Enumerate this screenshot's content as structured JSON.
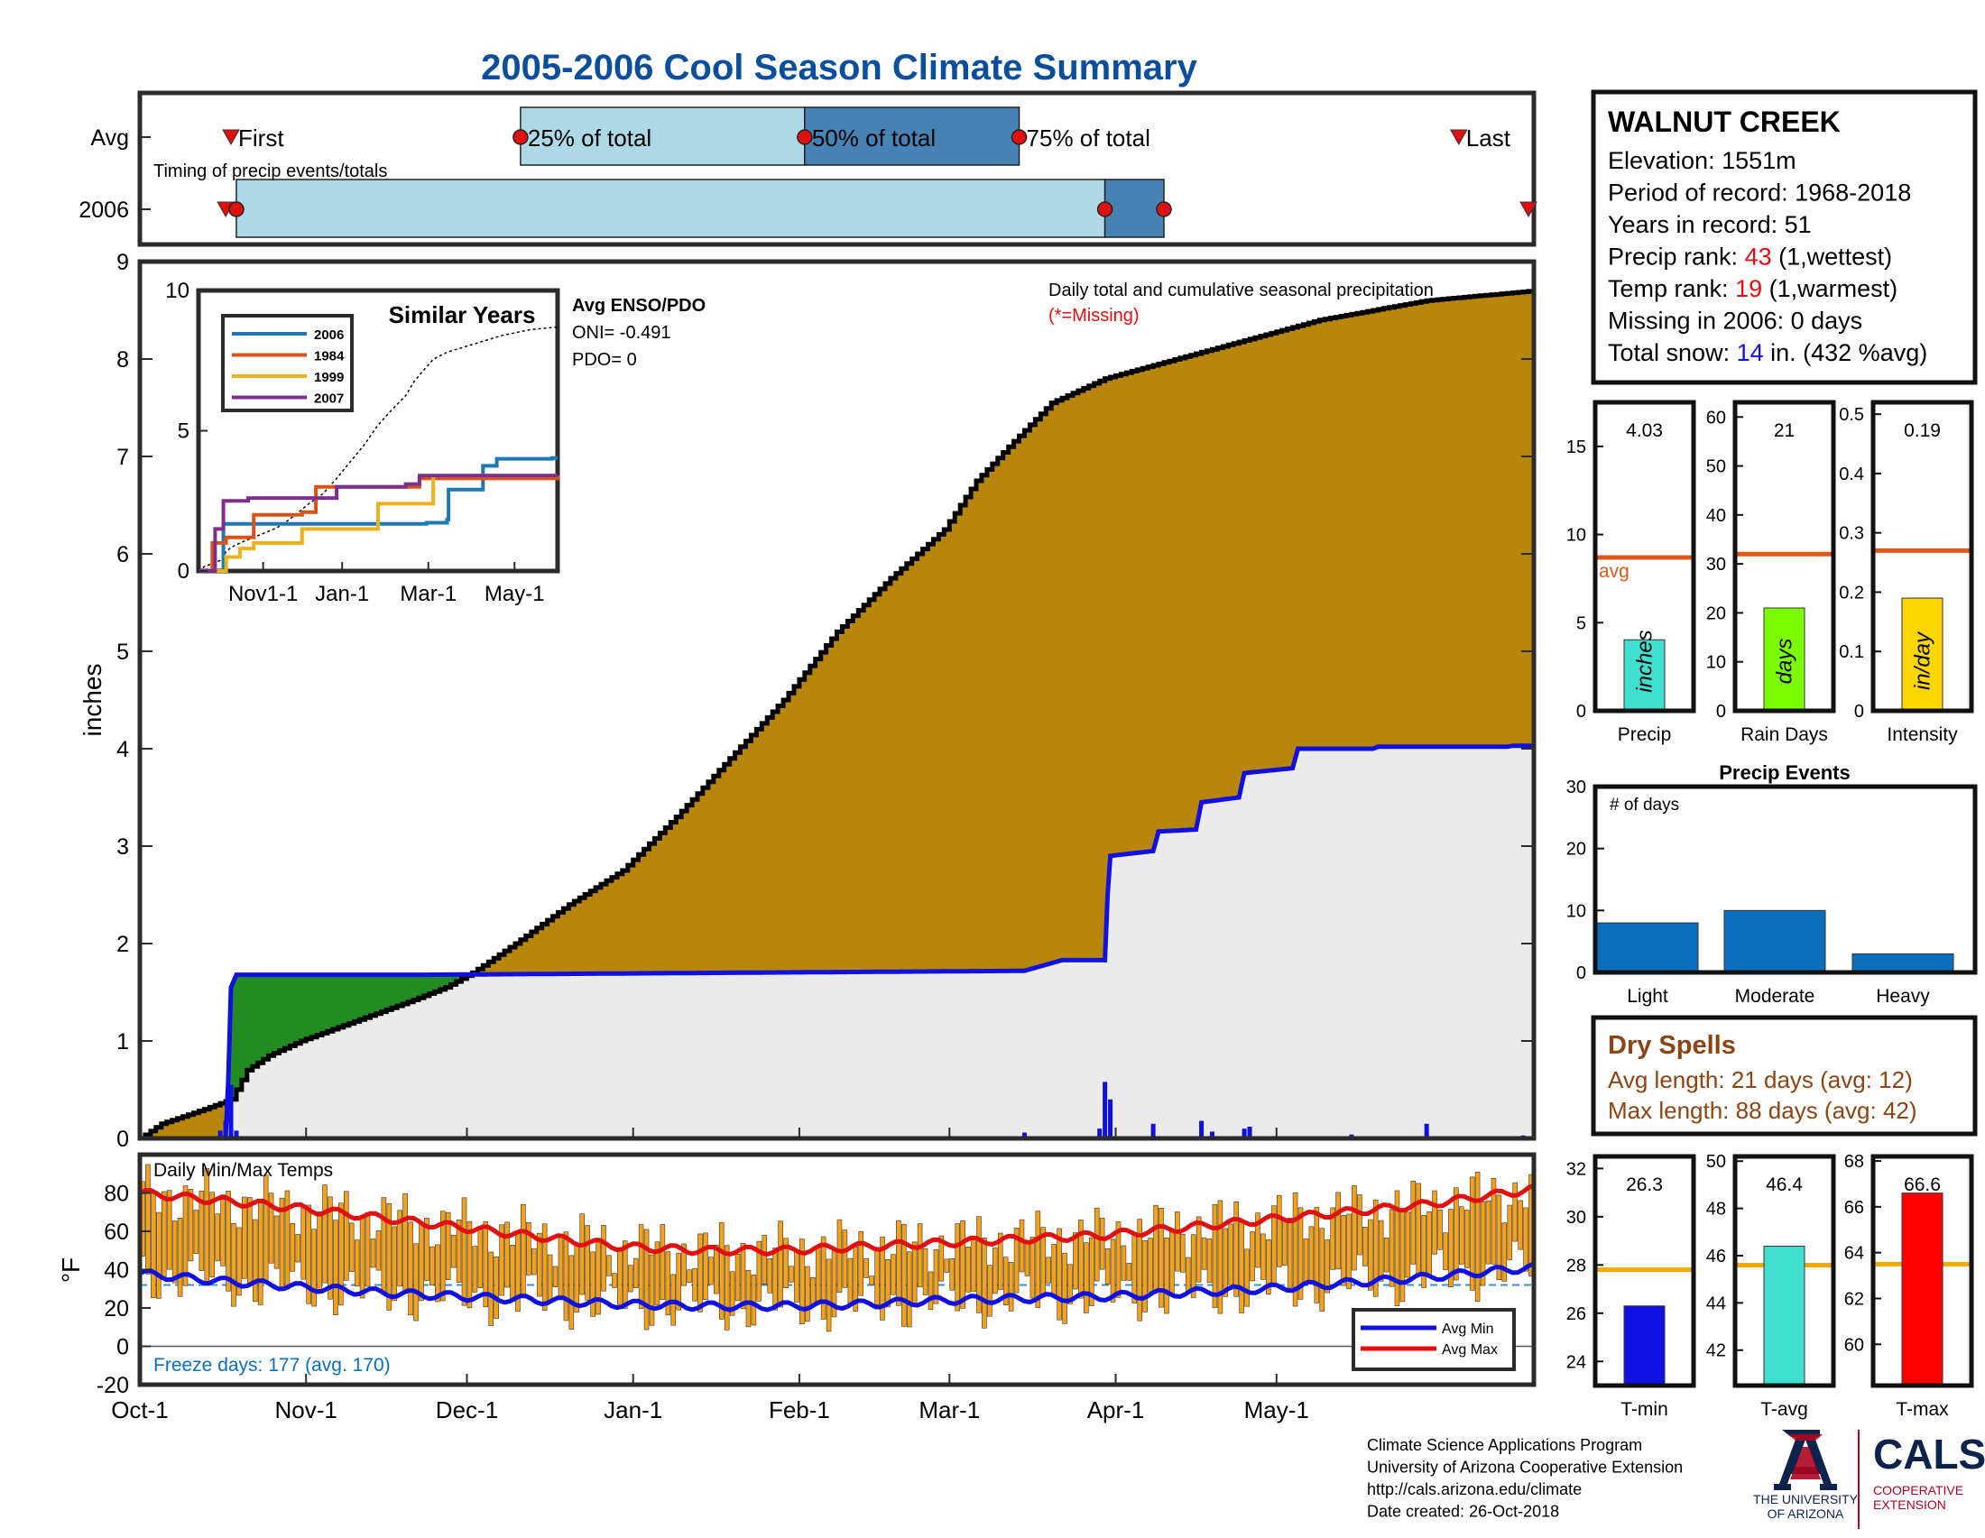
{
  "title": "2005-2006 Cool Season Climate Summary",
  "colors": {
    "title": "#0b4f9c",
    "frame": "#2b2b2b",
    "cum_fill": "#b8860b",
    "surplus_fill": "#228b22",
    "current_line": "#1010e0",
    "below_fill": "#ebebeb",
    "red": "#e01010",
    "orange_avg": "#e0571c",
    "bar_light": "#add8e6",
    "bar_dark": "#4682b4",
    "event_bar": "#0a6ebd",
    "temp_bar": "#f5a21a",
    "dry_spell": "#8b4513",
    "snow_blue": "#1010e0"
  },
  "timing": {
    "row_labels": [
      "Avg",
      "2006"
    ],
    "caption": "Timing of precip events/totals",
    "avg_labels": [
      "First",
      "25% of total",
      "50% of total",
      "75% of total",
      "Last"
    ],
    "avg_days": {
      "first": 17,
      "p25": 71,
      "p50": 124,
      "p75": 164,
      "last": 246
    },
    "y2006_days": {
      "first": 16,
      "first_marker": 18,
      "p50": 180,
      "p75": 191,
      "last": 260
    }
  },
  "station": {
    "name": "WALNUT CREEK",
    "lines": [
      {
        "prefix": "Elevation: 1551m",
        "value": "",
        "suffix": ""
      },
      {
        "prefix": "Period of record: 1968-2018",
        "value": "",
        "suffix": ""
      },
      {
        "prefix": "Years in record: 51",
        "value": "",
        "suffix": ""
      },
      {
        "prefix": "Precip rank: ",
        "value": "43",
        "suffix": " (1,wettest)",
        "color": "#e01010"
      },
      {
        "prefix": "Temp rank: ",
        "value": "19",
        "suffix": " (1,warmest)",
        "color": "#e01010"
      },
      {
        "prefix": "Missing in 2006: 0 days",
        "value": "",
        "suffix": ""
      },
      {
        "prefix": "Total snow: ",
        "value": "14",
        "suffix": " in. (432 %avg)",
        "color": "#1010e0"
      }
    ]
  },
  "main_panel": {
    "ylabel": "inches",
    "annotation": "Daily total and cumulative seasonal precipitation",
    "missing_note": "(*=Missing)",
    "yticks": [
      0,
      1,
      2,
      3,
      4,
      5,
      6,
      7,
      8,
      9
    ]
  },
  "inset": {
    "title": "Similar Years",
    "yticks": [
      0,
      5,
      10
    ],
    "xticks": [
      "Nov1-1",
      "Jan-1",
      "Mar-1",
      "May-1"
    ],
    "legend": [
      {
        "name": "2006",
        "color": "#1f77b4"
      },
      {
        "name": "1984",
        "color": "#d95319"
      },
      {
        "name": "1999",
        "color": "#edb120"
      },
      {
        "name": "2007",
        "color": "#7e2f8e"
      }
    ]
  },
  "enso": {
    "title": "Avg ENSO/PDO",
    "oni": "ONI= -0.491",
    "pdo": "PDO= 0"
  },
  "temp_panel": {
    "title": "Daily Min/Max Temps",
    "ylabel": "°F",
    "yticks": [
      -20,
      0,
      20,
      40,
      60,
      80
    ],
    "freeze_note": "Freeze days: 177 (avg. 170)",
    "legend": [
      {
        "name": "Avg Min",
        "color": "#1010e0"
      },
      {
        "name": "Avg Max",
        "color": "#e01010"
      }
    ]
  },
  "x_axis_labels": [
    "Oct-1",
    "Nov-1",
    "Dec-1",
    "Jan-1",
    "Feb-1",
    "Mar-1",
    "Apr-1",
    "May-1"
  ],
  "stats_top": [
    {
      "label": "Precip",
      "value_text": "4.03",
      "value": 4.03,
      "avg": 8.7,
      "ymax": 17.5,
      "yticks": [
        0,
        5,
        10,
        15
      ],
      "unit": "inches",
      "color": "#40e0d0",
      "avg_label": "avg"
    },
    {
      "label": "Rain Days",
      "value_text": "21",
      "value": 21,
      "avg": 32,
      "ymax": 63,
      "yticks": [
        0,
        10,
        20,
        30,
        40,
        50,
        60
      ],
      "unit": "days",
      "color": "#7cfc00",
      "avg_label": ""
    },
    {
      "label": "Intensity",
      "value_text": "0.19",
      "value": 0.19,
      "avg": 0.27,
      "ymax": 0.52,
      "yticks": [
        0,
        0.1,
        0.2,
        0.3,
        0.4,
        0.5
      ],
      "unit": "in/day",
      "color": "#ffd700",
      "avg_label": ""
    }
  ],
  "precip_events": {
    "title": "Precip Events",
    "subtitle": "# of days",
    "categories": [
      "Light",
      "Moderate",
      "Heavy"
    ],
    "values": [
      8,
      10,
      3
    ],
    "yticks": [
      0,
      10,
      20,
      30
    ]
  },
  "dry_spells": {
    "title": "Dry Spells",
    "avg_length": "Avg length: 21 days (avg: 12)",
    "max_length": "Max length: 88 days (avg: 42)"
  },
  "stats_temp": [
    {
      "label": "T-min",
      "value_text": "26.3",
      "value": 26.3,
      "avg": 27.8,
      "ymin": 23,
      "ymax": 32.5,
      "yticks": [
        24,
        26,
        28,
        30,
        32
      ],
      "color": "#1010e0"
    },
    {
      "label": "T-avg",
      "value_text": "46.4",
      "value": 46.4,
      "avg": 45.6,
      "ymin": 40.5,
      "ymax": 50.2,
      "yticks": [
        42,
        44,
        46,
        48,
        50
      ],
      "color": "#40e0d0"
    },
    {
      "label": "T-max",
      "value_text": "66.6",
      "value": 66.6,
      "avg": 63.5,
      "ymin": 58.2,
      "ymax": 68.2,
      "yticks": [
        60,
        62,
        64,
        66,
        68
      ],
      "color": "#ff0000"
    }
  ],
  "footer": {
    "lines": [
      "Climate Science Applications Program",
      "University of Arizona Cooperative Extension",
      "http://cals.arizona.edu/climate",
      " Date created: 26-Oct-2018"
    ],
    "ua_name": [
      "THE UNIVERSITY",
      "OF ARIZONA"
    ],
    "cals": "CALS",
    "cals_sub": [
      "COOPERATIVE",
      "EXTENSION"
    ]
  },
  "chart_data": {
    "type": "area",
    "title": "2005-2006 Cool Season Climate Summary",
    "ylabel": "inches",
    "ylim": [
      0,
      9
    ],
    "x_start": "Oct-1",
    "x_ticks": [
      "Oct-1",
      "Nov-1",
      "Dec-1",
      "Jan-1",
      "Feb-1",
      "Mar-1",
      "Apr-1",
      "May-1"
    ],
    "series": [
      {
        "name": "Average cumulative precipitation",
        "x_day": [
          0,
          4,
          12,
          17,
          20,
          24,
          30,
          40,
          50,
          57,
          62,
          70,
          80,
          90,
          100,
          110,
          120,
          130,
          140,
          150,
          156,
          162,
          170,
          180,
          190,
          200,
          210,
          220,
          230,
          240,
          260
        ],
        "y": [
          0,
          0.15,
          0.3,
          0.4,
          0.7,
          0.85,
          1.0,
          1.2,
          1.4,
          1.55,
          1.7,
          2.0,
          2.4,
          2.75,
          3.3,
          3.9,
          4.5,
          5.2,
          5.75,
          6.25,
          6.75,
          7.1,
          7.55,
          7.8,
          7.95,
          8.1,
          8.25,
          8.4,
          8.5,
          8.6,
          8.7
        ]
      },
      {
        "name": "2006 cumulative precipitation",
        "x_day": [
          0,
          16,
          16.5,
          17,
          18,
          54,
          110,
          165,
          172,
          180,
          180.5,
          181,
          189,
          190,
          197,
          198,
          205,
          206,
          215,
          216,
          230,
          231,
          255,
          256,
          260
        ],
        "y": [
          0,
          0,
          0.6,
          1.55,
          1.68,
          1.68,
          1.7,
          1.72,
          1.83,
          1.83,
          2.5,
          2.9,
          2.95,
          3.15,
          3.17,
          3.45,
          3.5,
          3.75,
          3.8,
          4.0,
          4.0,
          4.02,
          4.02,
          4.03,
          4.03
        ]
      }
    ],
    "daily_precip": {
      "x_day": [
        15,
        16,
        17,
        18,
        165,
        179,
        180,
        181,
        189,
        198,
        200,
        206,
        207,
        211,
        226,
        240,
        258
      ],
      "y": [
        0.08,
        0.18,
        0.55,
        0.08,
        0.06,
        0.1,
        0.58,
        0.4,
        0.15,
        0.18,
        0.07,
        0.1,
        0.12,
        0.02,
        0.04,
        0.15,
        0.03
      ]
    },
    "temperature": {
      "ylabel": "°F",
      "ylim": [
        -20,
        100
      ],
      "avg_max": {
        "x_day": [
          0,
          15,
          30,
          45,
          60,
          75,
          90,
          105,
          120,
          135,
          150,
          165,
          180,
          195,
          210,
          225,
          240,
          255,
          260
        ],
        "y": [
          80,
          76,
          72,
          67,
          62,
          57,
          52,
          50,
          50,
          52,
          54,
          56,
          58,
          62,
          66,
          70,
          74,
          80,
          82
        ]
      },
      "avg_min": {
        "x_day": [
          0,
          15,
          30,
          45,
          60,
          75,
          90,
          105,
          120,
          135,
          150,
          165,
          180,
          195,
          210,
          225,
          240,
          255,
          260
        ],
        "y": [
          38,
          34,
          31,
          28,
          26,
          24,
          22,
          21,
          21,
          22,
          24,
          25,
          26,
          28,
          30,
          33,
          36,
          40,
          41
        ]
      }
    },
    "inset_similar_years": {
      "ylim": [
        0,
        10
      ],
      "series": [
        {
          "name": "2006",
          "x_day": [
            0,
            16,
            18,
            54,
            165,
            180,
            181,
            206,
            216,
            256,
            260
          ],
          "y": [
            0,
            0,
            1.68,
            1.68,
            1.72,
            1.83,
            2.9,
            3.75,
            4.0,
            4.03,
            4.03
          ]
        },
        {
          "name": "1984",
          "x_day": [
            0,
            10,
            20,
            40,
            75,
            85,
            120,
            160,
            260
          ],
          "y": [
            0,
            1.0,
            1.2,
            2.0,
            2.1,
            3.0,
            3.0,
            3.3,
            3.4
          ]
        },
        {
          "name": "1999",
          "x_day": [
            0,
            20,
            30,
            40,
            75,
            110,
            130,
            160,
            170,
            200,
            260
          ],
          "y": [
            0,
            0.5,
            0.8,
            1.0,
            1.5,
            1.5,
            2.4,
            2.4,
            3.4,
            3.4,
            3.4
          ]
        },
        {
          "name": "2007",
          "x_day": [
            0,
            12,
            18,
            36,
            60,
            100,
            150,
            160,
            260
          ],
          "y": [
            0,
            1.5,
            2.5,
            2.6,
            2.6,
            3.0,
            3.1,
            3.4,
            3.4
          ]
        }
      ]
    }
  }
}
